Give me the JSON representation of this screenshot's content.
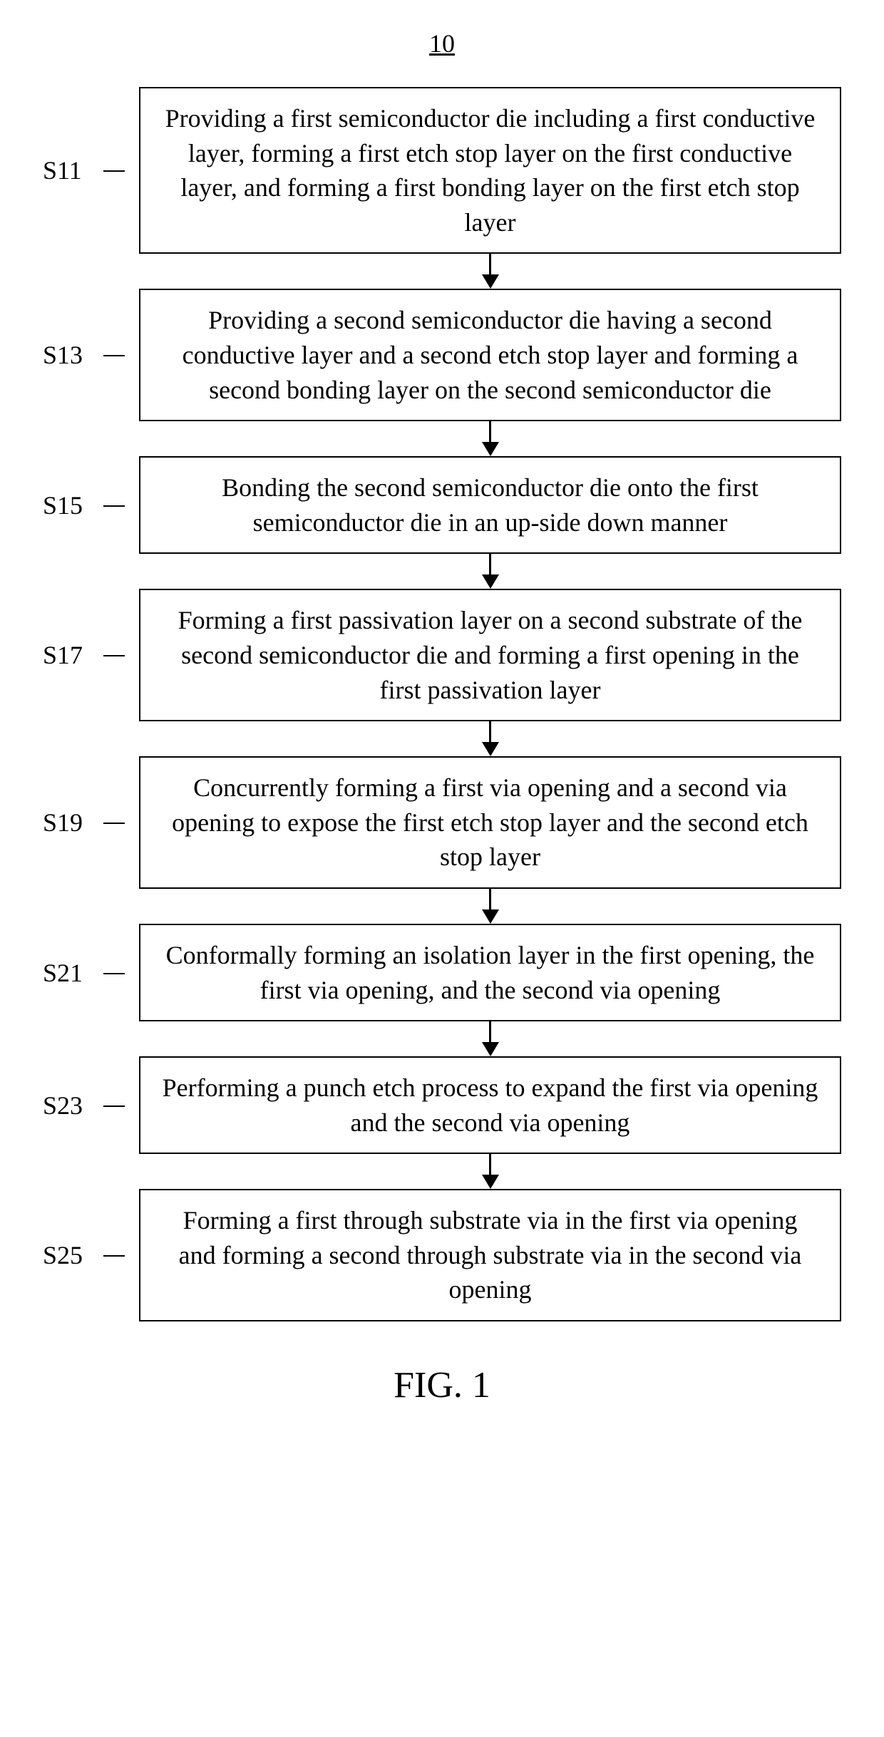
{
  "diagram": {
    "title": "10",
    "figure_label": "FIG. 1",
    "arrow_line_height": 30,
    "steps": [
      {
        "label": "S11",
        "text": "Providing a first semiconductor die including a first conductive layer, forming a first etch stop layer on the first conductive layer, and forming a first bonding layer on the first etch stop layer"
      },
      {
        "label": "S13",
        "text": "Providing a second semiconductor die having a second conductive layer and a second etch stop layer and forming a second bonding layer on the second semiconductor die"
      },
      {
        "label": "S15",
        "text": "Bonding the second semiconductor die onto the first semiconductor die in an up-side down manner"
      },
      {
        "label": "S17",
        "text": "Forming a first passivation layer on a second substrate of the second semiconductor die and forming a first opening in the first passivation layer"
      },
      {
        "label": "S19",
        "text": "Concurrently forming a first via opening and a second via opening to expose the first etch stop layer and the second etch stop layer"
      },
      {
        "label": "S21",
        "text": "Conformally forming an isolation layer in the first opening, the first via opening, and the second via opening"
      },
      {
        "label": "S23",
        "text": "Performing a punch etch process to expand the first via opening and the second via opening"
      },
      {
        "label": "S25",
        "text": "Forming a first through substrate via in the first via opening and forming a second through substrate via in the second via opening"
      }
    ]
  }
}
